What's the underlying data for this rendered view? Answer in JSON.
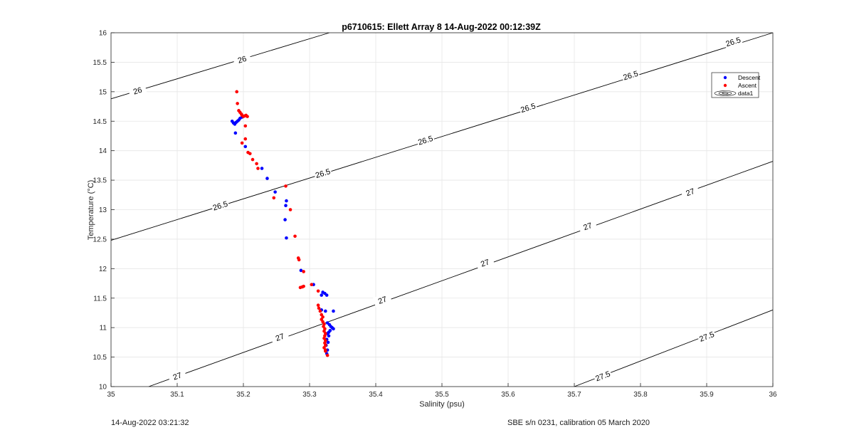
{
  "chart_data": {
    "type": "scatter",
    "title": "p6710615: Ellett Array 8 14-Aug-2022 00:12:39Z",
    "xlabel": "Salinity (psu)",
    "ylabel": "Temperature (°C)",
    "xlim": [
      35,
      36
    ],
    "ylim": [
      10,
      16
    ],
    "xticks": [
      "35",
      "35.1",
      "35.2",
      "35.3",
      "35.4",
      "35.5",
      "35.6",
      "35.7",
      "35.8",
      "35.9",
      "36"
    ],
    "yticks": [
      "10",
      "10.5",
      "11",
      "11.5",
      "12",
      "12.5",
      "13",
      "13.5",
      "14",
      "14.5",
      "15",
      "15.5",
      "16"
    ],
    "grid": true,
    "legend_position": "top-right",
    "series": [
      {
        "name": "Descent",
        "color": "#0000ff",
        "marker": "dot",
        "points": [
          [
            35.183,
            14.5
          ],
          [
            35.185,
            14.47
          ],
          [
            35.187,
            14.45
          ],
          [
            35.189,
            14.48
          ],
          [
            35.191,
            14.5
          ],
          [
            35.193,
            14.52
          ],
          [
            35.195,
            14.55
          ],
          [
            35.198,
            14.57
          ],
          [
            35.188,
            14.3
          ],
          [
            35.203,
            14.07
          ],
          [
            35.228,
            13.7
          ],
          [
            35.236,
            13.53
          ],
          [
            35.248,
            13.3
          ],
          [
            35.265,
            13.15
          ],
          [
            35.264,
            13.07
          ],
          [
            35.263,
            12.83
          ],
          [
            35.265,
            12.52
          ],
          [
            35.287,
            11.97
          ],
          [
            35.306,
            11.73
          ],
          [
            35.318,
            11.55
          ],
          [
            35.32,
            11.6
          ],
          [
            35.323,
            11.58
          ],
          [
            35.326,
            11.55
          ],
          [
            35.318,
            11.3
          ],
          [
            35.324,
            11.28
          ],
          [
            35.336,
            11.28
          ],
          [
            35.327,
            11.08
          ],
          [
            35.33,
            11.05
          ],
          [
            35.332,
            11.02
          ],
          [
            35.334,
            11.0
          ],
          [
            35.336,
            10.98
          ],
          [
            35.331,
            10.95
          ],
          [
            35.329,
            10.92
          ],
          [
            35.327,
            10.9
          ],
          [
            35.329,
            10.86
          ],
          [
            35.326,
            10.8
          ],
          [
            35.328,
            10.75
          ],
          [
            35.325,
            10.7
          ],
          [
            35.327,
            10.62
          ],
          [
            35.326,
            10.56
          ]
        ]
      },
      {
        "name": "Ascent",
        "color": "#ff0000",
        "marker": "dot",
        "points": [
          [
            35.19,
            15.0
          ],
          [
            35.191,
            14.8
          ],
          [
            35.193,
            14.68
          ],
          [
            35.195,
            14.65
          ],
          [
            35.197,
            14.62
          ],
          [
            35.198,
            14.6
          ],
          [
            35.2,
            14.58
          ],
          [
            35.202,
            14.59
          ],
          [
            35.204,
            14.6
          ],
          [
            35.206,
            14.58
          ],
          [
            35.203,
            14.42
          ],
          [
            35.203,
            14.2
          ],
          [
            35.198,
            14.13
          ],
          [
            35.207,
            13.97
          ],
          [
            35.21,
            13.95
          ],
          [
            35.214,
            13.85
          ],
          [
            35.22,
            13.78
          ],
          [
            35.222,
            13.7
          ],
          [
            35.264,
            13.4
          ],
          [
            35.246,
            13.2
          ],
          [
            35.271,
            13.0
          ],
          [
            35.278,
            12.55
          ],
          [
            35.283,
            12.18
          ],
          [
            35.284,
            12.15
          ],
          [
            35.291,
            11.95
          ],
          [
            35.286,
            11.68
          ],
          [
            35.289,
            11.69
          ],
          [
            35.291,
            11.7
          ],
          [
            35.303,
            11.73
          ],
          [
            35.313,
            11.62
          ],
          [
            35.313,
            11.38
          ],
          [
            35.314,
            11.33
          ],
          [
            35.316,
            11.28
          ],
          [
            35.318,
            11.22
          ],
          [
            35.32,
            11.18
          ],
          [
            35.318,
            11.14
          ],
          [
            35.32,
            11.1
          ],
          [
            35.322,
            11.06
          ],
          [
            35.321,
            11.02
          ],
          [
            35.323,
            10.98
          ],
          [
            35.322,
            10.94
          ],
          [
            35.324,
            10.9
          ],
          [
            35.323,
            10.86
          ],
          [
            35.322,
            10.82
          ],
          [
            35.324,
            10.78
          ],
          [
            35.323,
            10.74
          ],
          [
            35.324,
            10.7
          ],
          [
            35.322,
            10.66
          ],
          [
            35.324,
            10.62
          ],
          [
            35.324,
            10.6
          ],
          [
            35.327,
            10.53
          ]
        ]
      }
    ],
    "contours": [
      {
        "level": "26",
        "points": [
          [
            35,
            14.88
          ],
          [
            35.33,
            16
          ]
        ],
        "labels": [
          [
            35.04,
            15.02
          ],
          [
            35.198,
            15.55
          ]
        ]
      },
      {
        "level": "26.5",
        "points": [
          [
            35,
            12.48
          ],
          [
            36,
            16
          ]
        ],
        "labels": [
          [
            35.165,
            13.07
          ],
          [
            35.32,
            13.62
          ],
          [
            35.475,
            14.18
          ],
          [
            35.63,
            14.73
          ],
          [
            35.785,
            15.28
          ],
          [
            35.94,
            15.85
          ]
        ]
      },
      {
        "level": "27",
        "points": [
          [
            35.057,
            10
          ],
          [
            36,
            13.82
          ]
        ],
        "labels": [
          [
            35.1,
            10.18
          ],
          [
            35.255,
            10.84
          ],
          [
            35.41,
            11.47
          ],
          [
            35.565,
            12.1
          ],
          [
            35.72,
            12.72
          ],
          [
            35.875,
            13.3
          ]
        ]
      },
      {
        "level": "27.5",
        "points": [
          [
            35.7,
            10
          ],
          [
            36,
            11.3
          ]
        ],
        "labels": [
          [
            35.743,
            10.18
          ],
          [
            35.9,
            10.85
          ]
        ]
      }
    ],
    "legend": [
      "Descent",
      "Ascent",
      "data1"
    ]
  },
  "footer": {
    "left": "14-Aug-2022 03:21:32",
    "right": "SBE s/n 0231, calibration 05 March 2020"
  }
}
